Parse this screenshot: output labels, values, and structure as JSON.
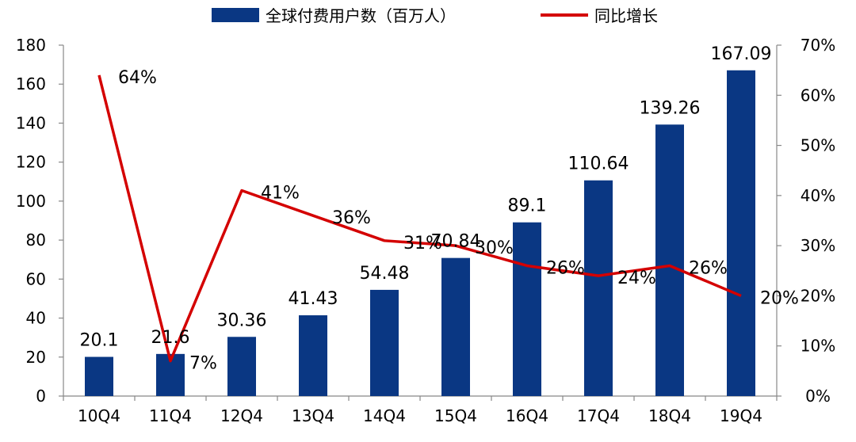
{
  "chart_data": {
    "type": "bar",
    "categories": [
      "10Q4",
      "11Q4",
      "12Q4",
      "13Q4",
      "14Q4",
      "15Q4",
      "16Q4",
      "17Q4",
      "18Q4",
      "19Q4"
    ],
    "series": [
      {
        "name": "全球付费用户数（百万人）",
        "type": "bar",
        "axis": "left",
        "color": "#0A3783",
        "values": [
          20.1,
          21.6,
          30.36,
          41.43,
          54.48,
          70.84,
          89.1,
          110.64,
          139.26,
          167.09
        ],
        "labels": [
          "20.1",
          "21.6",
          "30.36",
          "41.43",
          "54.48",
          "70.84",
          "89.1",
          "110.64",
          "139.26",
          "167.09"
        ]
      },
      {
        "name": "同比增长",
        "type": "line",
        "axis": "right",
        "color": "#D40000",
        "values": [
          0.64,
          0.07,
          0.41,
          0.36,
          0.31,
          0.3,
          0.26,
          0.24,
          0.26,
          0.2
        ],
        "labels": [
          "64%",
          "7%",
          "41%",
          "36%",
          "31%",
          "30%",
          "26%",
          "24%",
          "26%",
          "20%"
        ]
      }
    ],
    "y_left": {
      "min": 0,
      "max": 180,
      "ticks": [
        "0",
        "20",
        "40",
        "60",
        "80",
        "100",
        "120",
        "140",
        "160",
        "180"
      ]
    },
    "y_right": {
      "min": 0,
      "max": 0.7,
      "ticks": [
        "0%",
        "10%",
        "20%",
        "30%",
        "40%",
        "50%",
        "60%",
        "70%"
      ]
    },
    "grid": false,
    "legend_position": "top"
  }
}
